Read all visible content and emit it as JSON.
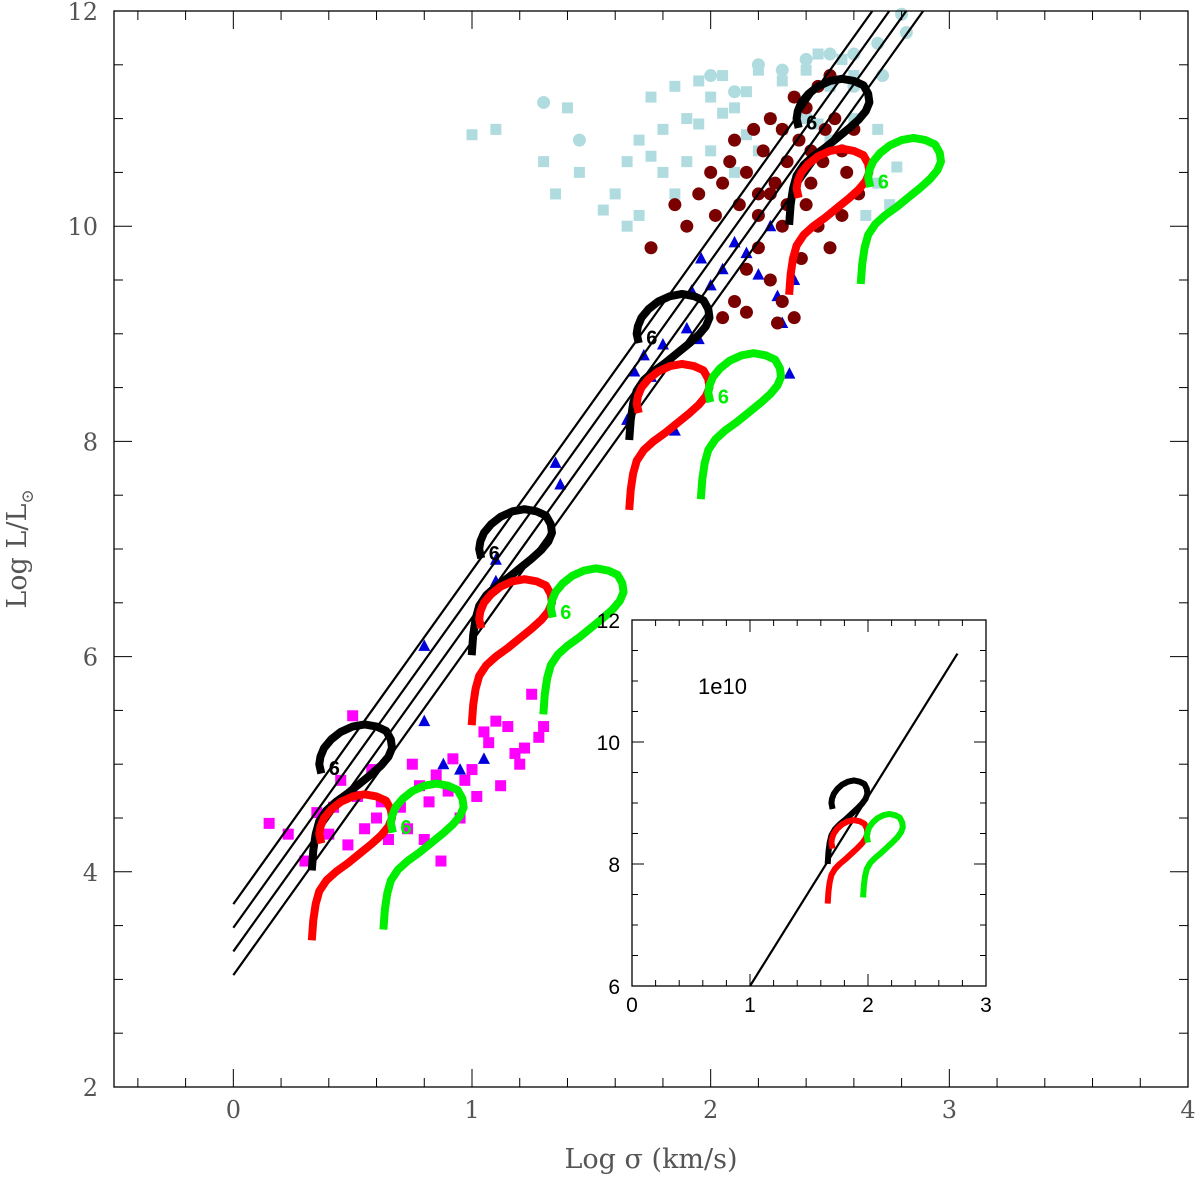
{
  "chart_data": [
    {
      "type": "scatter",
      "xlabel": "Log σ (km/s)",
      "ylabel": "Log L/L",
      "ylabel_subscript": "⊙",
      "xlim": [
        -0.5,
        4
      ],
      "ylim": [
        2,
        12
      ],
      "x_ticks": [
        "0",
        "1",
        "2",
        "3",
        "4"
      ],
      "y_ticks": [
        "2",
        "4",
        "6",
        "8",
        "10",
        "12"
      ],
      "grid": false,
      "lines": [
        {
          "slope": 3.1,
          "intercept": 3.7
        },
        {
          "slope": 3.1,
          "intercept": 3.48
        },
        {
          "slope": 3.1,
          "intercept": 3.26
        },
        {
          "slope": 3.1,
          "intercept": 3.04
        }
      ],
      "tracks": [
        {
          "color": "#000000",
          "x0": 0.33,
          "y0": 4.05,
          "label": "6"
        },
        {
          "color": "#ff0000",
          "x0": 0.33,
          "y0": 3.4
        },
        {
          "color": "#00ee00",
          "x0": 0.63,
          "y0": 3.5,
          "label": "6"
        },
        {
          "color": "#000000",
          "x0": 1.0,
          "y0": 6.05,
          "label": "6"
        },
        {
          "color": "#ff0000",
          "x0": 1.0,
          "y0": 5.4
        },
        {
          "color": "#00ee00",
          "x0": 1.3,
          "y0": 5.5,
          "label": "6"
        },
        {
          "color": "#000000",
          "x0": 1.66,
          "y0": 8.05,
          "label": "6"
        },
        {
          "color": "#ff0000",
          "x0": 1.66,
          "y0": 7.4
        },
        {
          "color": "#00ee00",
          "x0": 1.96,
          "y0": 7.5,
          "label": "6"
        },
        {
          "color": "#000000",
          "x0": 2.33,
          "y0": 10.05,
          "label": "6"
        },
        {
          "color": "#ff0000",
          "x0": 2.33,
          "y0": 9.4
        },
        {
          "color": "#00ee00",
          "x0": 2.63,
          "y0": 9.5,
          "label": "6"
        }
      ],
      "series": [
        {
          "marker": "square",
          "color": "#ff00ff",
          "points": [
            [
              0.15,
              4.45
            ],
            [
              0.23,
              4.35
            ],
            [
              0.3,
              4.1
            ],
            [
              0.35,
              4.55
            ],
            [
              0.4,
              4.35
            ],
            [
              0.42,
              4.6
            ],
            [
              0.45,
              4.85
            ],
            [
              0.48,
              4.25
            ],
            [
              0.5,
              5.45
            ],
            [
              0.52,
              4.7
            ],
            [
              0.55,
              4.4
            ],
            [
              0.58,
              4.95
            ],
            [
              0.6,
              4.5
            ],
            [
              0.62,
              4.65
            ],
            [
              0.65,
              4.3
            ],
            [
              0.7,
              4.6
            ],
            [
              0.73,
              4.4
            ],
            [
              0.75,
              5.0
            ],
            [
              0.78,
              4.8
            ],
            [
              0.8,
              4.3
            ],
            [
              0.82,
              4.65
            ],
            [
              0.85,
              4.9
            ],
            [
              0.87,
              4.1
            ],
            [
              0.9,
              4.75
            ],
            [
              0.92,
              5.05
            ],
            [
              0.95,
              4.5
            ],
            [
              0.97,
              4.85
            ],
            [
              1.0,
              4.95
            ],
            [
              1.02,
              4.7
            ],
            [
              1.05,
              5.3
            ],
            [
              1.07,
              5.2
            ],
            [
              1.1,
              5.4
            ],
            [
              1.12,
              4.8
            ],
            [
              1.15,
              5.35
            ],
            [
              1.18,
              5.1
            ],
            [
              1.22,
              5.15
            ],
            [
              1.25,
              5.65
            ],
            [
              1.28,
              5.25
            ],
            [
              1.3,
              5.35
            ],
            [
              1.2,
              5.0
            ]
          ]
        },
        {
          "marker": "triangle",
          "color": "#0000dd",
          "points": [
            [
              0.8,
              6.1
            ],
            [
              0.8,
              5.4
            ],
            [
              0.88,
              5.0
            ],
            [
              0.95,
              4.95
            ],
            [
              1.05,
              5.05
            ],
            [
              1.1,
              6.7
            ],
            [
              1.1,
              6.9
            ],
            [
              1.35,
              7.8
            ],
            [
              1.37,
              7.6
            ],
            [
              1.65,
              8.2
            ],
            [
              1.68,
              8.65
            ],
            [
              1.72,
              8.8
            ],
            [
              1.75,
              8.6
            ],
            [
              1.8,
              8.9
            ],
            [
              1.85,
              8.1
            ],
            [
              1.9,
              9.05
            ],
            [
              1.95,
              8.95
            ],
            [
              2.0,
              9.45
            ],
            [
              1.92,
              9.4
            ],
            [
              2.05,
              9.6
            ],
            [
              2.1,
              9.85
            ],
            [
              2.15,
              9.75
            ],
            [
              2.2,
              9.55
            ],
            [
              2.28,
              9.35
            ],
            [
              2.3,
              9.1
            ],
            [
              2.33,
              8.63
            ],
            [
              1.96,
              9.7
            ],
            [
              2.25,
              10.0
            ],
            [
              2.35,
              9.5
            ]
          ]
        },
        {
          "marker": "square",
          "color": "#b0dce0",
          "points": [
            [
              1.0,
              10.85
            ],
            [
              1.1,
              10.9
            ],
            [
              1.3,
              10.6
            ],
            [
              1.4,
              11.1
            ],
            [
              1.35,
              10.3
            ],
            [
              1.45,
              10.5
            ],
            [
              1.55,
              10.15
            ],
            [
              1.6,
              10.3
            ],
            [
              1.65,
              10.6
            ],
            [
              1.7,
              10.8
            ],
            [
              1.75,
              11.2
            ],
            [
              1.8,
              10.9
            ],
            [
              1.85,
              11.3
            ],
            [
              1.9,
              11.0
            ],
            [
              1.95,
              11.35
            ],
            [
              2.0,
              11.2
            ],
            [
              2.05,
              11.4
            ],
            [
              2.1,
              11.1
            ],
            [
              2.15,
              11.25
            ],
            [
              2.2,
              11.45
            ],
            [
              2.25,
              11.0
            ],
            [
              2.3,
              11.35
            ],
            [
              2.35,
              11.2
            ],
            [
              2.4,
              11.45
            ],
            [
              2.45,
              11.6
            ],
            [
              2.5,
              11.3
            ],
            [
              2.55,
              11.55
            ],
            [
              2.6,
              11.4
            ],
            [
              1.8,
              10.5
            ],
            [
              1.9,
              10.6
            ],
            [
              2.0,
              10.7
            ],
            [
              2.1,
              10.5
            ],
            [
              1.7,
              10.1
            ],
            [
              1.65,
              10.0
            ],
            [
              1.85,
              10.3
            ],
            [
              2.2,
              10.7
            ],
            [
              2.3,
              10.9
            ],
            [
              2.4,
              11.0
            ],
            [
              2.7,
              10.4
            ],
            [
              2.75,
              10.2
            ],
            [
              2.65,
              10.1
            ],
            [
              2.78,
              10.55
            ],
            [
              2.7,
              10.9
            ],
            [
              2.6,
              11.0
            ],
            [
              2.5,
              10.8
            ],
            [
              2.45,
              10.95
            ],
            [
              1.75,
              10.65
            ],
            [
              1.95,
              10.95
            ],
            [
              2.05,
              11.05
            ],
            [
              2.15,
              10.85
            ]
          ]
        },
        {
          "marker": "circle",
          "color": "#b0dce0",
          "points": [
            [
              1.3,
              11.15
            ],
            [
              1.45,
              10.8
            ],
            [
              2.0,
              11.4
            ],
            [
              2.1,
              11.25
            ],
            [
              2.2,
              11.5
            ],
            [
              2.3,
              11.45
            ],
            [
              2.4,
              11.55
            ],
            [
              2.5,
              11.6
            ],
            [
              2.6,
              11.6
            ],
            [
              2.7,
              11.7
            ],
            [
              2.72,
              11.4
            ],
            [
              2.8,
              11.97
            ],
            [
              2.82,
              11.8
            ],
            [
              2.6,
              11.3
            ]
          ]
        },
        {
          "marker": "circle",
          "color": "#7a0000",
          "points": [
            [
              1.75,
              9.8
            ],
            [
              1.85,
              10.2
            ],
            [
              1.9,
              10.0
            ],
            [
              1.95,
              10.3
            ],
            [
              2.0,
              10.5
            ],
            [
              2.02,
              10.1
            ],
            [
              2.05,
              10.4
            ],
            [
              2.08,
              10.6
            ],
            [
              2.1,
              10.8
            ],
            [
              2.12,
              10.2
            ],
            [
              2.15,
              10.5
            ],
            [
              2.18,
              10.9
            ],
            [
              2.2,
              10.3
            ],
            [
              2.22,
              10.7
            ],
            [
              2.25,
              11.0
            ],
            [
              2.27,
              10.4
            ],
            [
              2.3,
              10.9
            ],
            [
              2.32,
              10.6
            ],
            [
              2.35,
              11.2
            ],
            [
              2.37,
              10.8
            ],
            [
              2.4,
              11.1
            ],
            [
              2.42,
              10.7
            ],
            [
              2.45,
              11.3
            ],
            [
              2.48,
              10.9
            ],
            [
              2.5,
              11.4
            ],
            [
              2.52,
              11.0
            ],
            [
              2.55,
              10.7
            ],
            [
              2.57,
              10.5
            ],
            [
              2.6,
              10.9
            ],
            [
              2.62,
              10.3
            ],
            [
              2.15,
              9.6
            ],
            [
              2.2,
              9.8
            ],
            [
              2.25,
              9.5
            ],
            [
              2.3,
              9.3
            ],
            [
              2.28,
              9.1
            ],
            [
              2.35,
              9.15
            ],
            [
              2.1,
              9.3
            ],
            [
              2.05,
              9.15
            ],
            [
              2.15,
              9.2
            ],
            [
              2.3,
              10.0
            ],
            [
              2.4,
              10.2
            ],
            [
              2.45,
              10.0
            ],
            [
              2.5,
              9.8
            ],
            [
              2.55,
              10.1
            ],
            [
              2.38,
              9.7
            ],
            [
              2.2,
              10.1
            ],
            [
              2.25,
              10.3
            ],
            [
              2.32,
              10.2
            ],
            [
              2.42,
              10.4
            ],
            [
              2.47,
              10.6
            ]
          ]
        }
      ],
      "point_sizes": [
        1
      ],
      "inset": {
        "type": "line",
        "annotation": "1e10",
        "xlim": [
          0,
          3
        ],
        "ylim": [
          6,
          12
        ],
        "x_ticks": [
          "0",
          "1",
          "2",
          "3"
        ],
        "y_ticks": [
          "6",
          "8",
          "10",
          "12"
        ],
        "line": {
          "slope": 3.1,
          "intercept": 2.9
        },
        "tracks": [
          {
            "color": "#000000",
            "x0": 1.66,
            "y0": 8.05
          },
          {
            "color": "#ff0000",
            "x0": 1.66,
            "y0": 7.4
          },
          {
            "color": "#00ee00",
            "x0": 1.96,
            "y0": 7.5
          }
        ]
      }
    }
  ]
}
